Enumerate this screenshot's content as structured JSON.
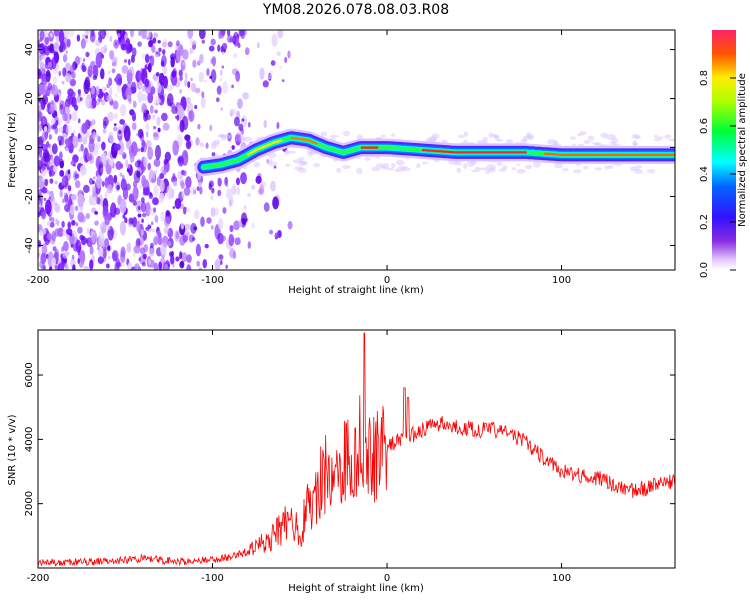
{
  "title": "YM08.2026.078.08.03.R08",
  "chart_data": [
    {
      "type": "heatmap",
      "xlabel": "Height of straight line (km)",
      "ylabel": "Frequency (Hz)",
      "xlim": [
        -200,
        165
      ],
      "ylim": [
        -50,
        48
      ],
      "xticks": [
        -200,
        -100,
        0,
        100
      ],
      "yticks": [
        -40,
        -20,
        0,
        20,
        40
      ],
      "colorbar": {
        "label": "Normalized spectral amplitude",
        "range": [
          0,
          1
        ],
        "ticks": [
          0.0,
          0.2,
          0.4,
          0.6,
          0.8
        ],
        "tick_labels": [
          "0.0",
          "0.2",
          "0.4",
          "0.6",
          "0.8"
        ],
        "colormap": "rainbow (purple-blue-cyan-green-yellow-red)"
      },
      "ridge": {
        "x": [
          -105,
          -95,
          -85,
          -75,
          -65,
          -55,
          -45,
          -35,
          -25,
          -15,
          -5,
          0,
          20,
          40,
          60,
          80,
          100,
          120,
          140,
          165
        ],
        "y": [
          -8,
          -7,
          -5,
          -1,
          2,
          4,
          3,
          0,
          -2,
          0,
          0,
          0,
          -1,
          -2,
          -2,
          -2,
          -3,
          -3,
          -3,
          -3
        ]
      }
    },
    {
      "type": "line",
      "xlabel": "Height of straight line (km)",
      "ylabel": "SNR (10 * v/v)",
      "xlim": [
        -200,
        165
      ],
      "ylim": [
        0,
        7400
      ],
      "xticks": [
        -200,
        -100,
        0,
        100
      ],
      "yticks": [
        2000,
        4000,
        6000
      ],
      "color": "#ff0000",
      "series": [
        {
          "x": [
            -200,
            -180,
            -160,
            -140,
            -120,
            -100,
            -90,
            -80,
            -70,
            -60,
            -55,
            -50,
            -45,
            -40,
            -35,
            -30,
            -25,
            -20,
            -15,
            -10,
            -5,
            0,
            10,
            20,
            30,
            40,
            50,
            60,
            70,
            80,
            90,
            100,
            110,
            120,
            130,
            140,
            150,
            165
          ],
          "values": [
            150,
            180,
            200,
            300,
            200,
            250,
            350,
            500,
            800,
            1300,
            1600,
            1000,
            2000,
            2400,
            3000,
            2800,
            3300,
            3500,
            4000,
            3500,
            3700,
            3800,
            4000,
            4300,
            4500,
            4400,
            4300,
            4300,
            4200,
            3900,
            3400,
            3000,
            2900,
            2800,
            2600,
            2400,
            2500,
            2700
          ]
        }
      ],
      "peaks": [
        {
          "x": -13,
          "y": 7300
        },
        {
          "x": 10,
          "y": 5600
        },
        {
          "x": 12,
          "y": 5300
        }
      ]
    }
  ]
}
